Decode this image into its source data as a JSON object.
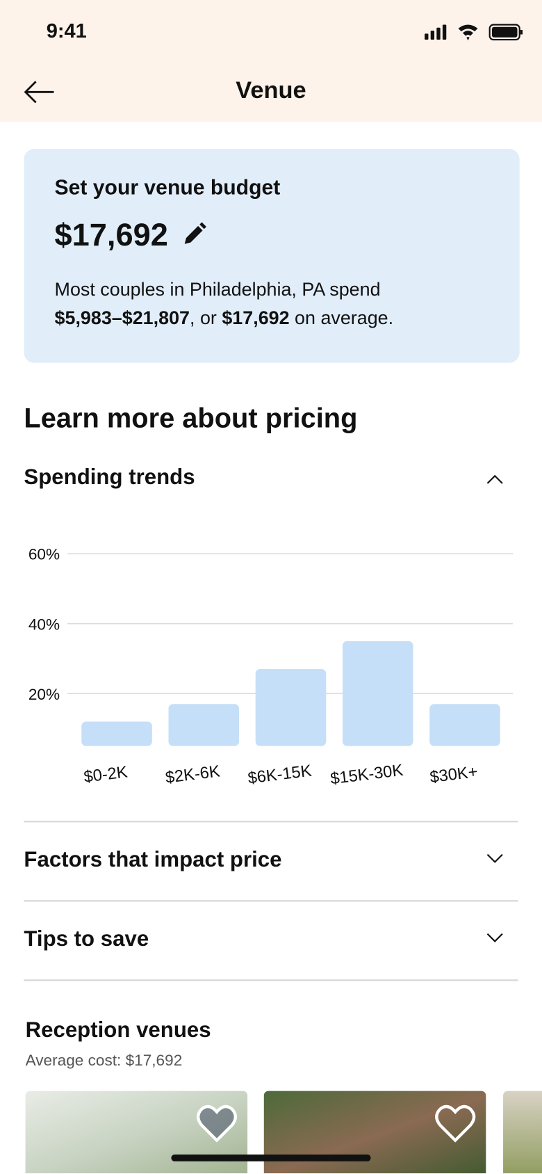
{
  "status_bar": {
    "time": "9:41"
  },
  "header": {
    "title": "Venue"
  },
  "budget_card": {
    "heading": "Set your venue budget",
    "amount": "$17,692",
    "text_1": "Most couples in Philadelphia, PA spend",
    "range": "$5,983–$21,807",
    "text_2": ", or",
    "average": "$17,692",
    "text_3": "on average."
  },
  "section_title": "Learn more about pricing",
  "accordions": [
    "Spending trends",
    "Factors that impact price",
    "Tips to save"
  ],
  "chart_data": {
    "type": "bar",
    "categories": [
      "$0-2K",
      "$2K-6K",
      "$6K-15K",
      "$15K-30K",
      "$30K+"
    ],
    "values": [
      12,
      17,
      27,
      35,
      17
    ],
    "color": "#c5dff8",
    "ylim": [
      5,
      60
    ],
    "yticks": [
      {
        "value": 20,
        "label": "20%"
      },
      {
        "value": 40,
        "label": "40%"
      },
      {
        "value": 60,
        "label": "60%"
      }
    ],
    "grid": true
  },
  "venues": {
    "title": "Reception venues",
    "subtitle": "Average cost: $17,692"
  }
}
